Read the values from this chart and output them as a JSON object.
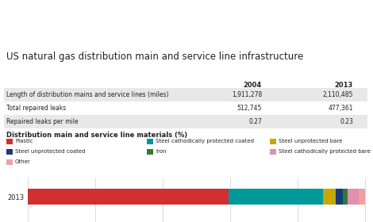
{
  "header_bg": "#F47920",
  "title": "US natural gas distribution main and service line infrastructure",
  "table_rows": [
    [
      "Length of distribution mains and service lines (miles)",
      "1,911,278",
      "2,110,485"
    ],
    [
      "Total repaired leaks",
      "512,745",
      "477,361"
    ],
    [
      "Repaired leaks per mile",
      "0.27",
      "0.23"
    ]
  ],
  "bar_label": "Distribution main and service line materials (%)",
  "bar_year": "2013",
  "bar_segments": [
    {
      "label": "Plastic",
      "value": 59.5,
      "color": "#D03030"
    },
    {
      "label": "Steel cathodically protected coated",
      "value": 28.0,
      "color": "#009999"
    },
    {
      "label": "Steel unprotected bare",
      "value": 3.8,
      "color": "#C8A800"
    },
    {
      "label": "Steel unprotected coated",
      "value": 2.0,
      "color": "#1A3A7A"
    },
    {
      "label": "Iron",
      "value": 1.5,
      "color": "#2E7D32"
    },
    {
      "label": "Steel cathodically protected bare",
      "value": 3.2,
      "color": "#E091B0"
    },
    {
      "label": "Other",
      "value": 2.0,
      "color": "#F0A0A0"
    }
  ],
  "bg_color": "#FFFFFF",
  "row_colors": [
    "#E8E8E8",
    "#FFFFFF",
    "#E8E8E8"
  ],
  "grid_color": "#CCCCCC",
  "text_color": "#222222"
}
